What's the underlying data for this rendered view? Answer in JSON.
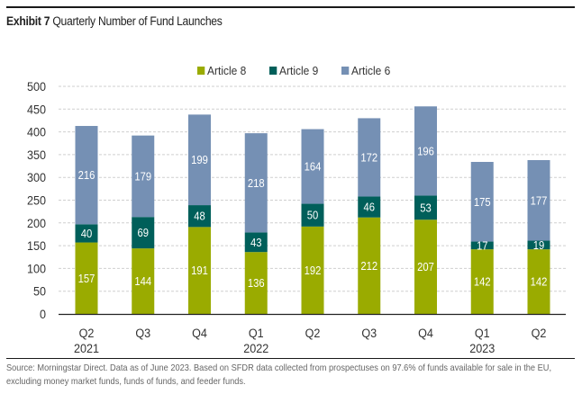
{
  "header": {
    "exhibit_label": "Exhibit 7",
    "title": "Quarterly Number of Fund Launches"
  },
  "footer": {
    "source_line1": "Source: Morningstar Direct. Data as of June 2023. Based on SFDR data collected from prospectuses on 97.6% of funds available for sale in the EU,",
    "source_line2": "excluding money market funds, funds of funds, and feeder funds."
  },
  "chart_data": {
    "type": "bar",
    "stacked": true,
    "title": "Quarterly Number of Fund Launches",
    "xlabel": "",
    "ylabel": "",
    "ylim": [
      0,
      500
    ],
    "yticks": [
      0,
      50,
      100,
      150,
      200,
      250,
      300,
      350,
      400,
      450,
      500
    ],
    "grid": true,
    "legend_position": "top-center",
    "categories": [
      "Q2 2021",
      "Q3 2021",
      "Q4 2021",
      "Q1 2022",
      "Q2 2022",
      "Q3 2022",
      "Q4 2022",
      "Q1 2023",
      "Q2 2023"
    ],
    "tick_labels": [
      {
        "quarter": "Q2",
        "year": "2021"
      },
      {
        "quarter": "Q3",
        "year": ""
      },
      {
        "quarter": "Q4",
        "year": ""
      },
      {
        "quarter": "Q1",
        "year": "2022"
      },
      {
        "quarter": "Q2",
        "year": ""
      },
      {
        "quarter": "Q3",
        "year": ""
      },
      {
        "quarter": "Q4",
        "year": ""
      },
      {
        "quarter": "Q1",
        "year": "2023"
      },
      {
        "quarter": "Q2",
        "year": ""
      }
    ],
    "series": [
      {
        "name": "Article 8",
        "color": "#9aab00",
        "values": [
          157,
          144,
          191,
          136,
          192,
          212,
          207,
          142,
          142
        ]
      },
      {
        "name": "Article 9",
        "color": "#005f5a",
        "values": [
          40,
          69,
          48,
          43,
          50,
          46,
          53,
          17,
          19
        ]
      },
      {
        "name": "Article 6",
        "color": "#7590b4",
        "values": [
          216,
          179,
          199,
          218,
          164,
          172,
          196,
          175,
          177
        ]
      }
    ]
  }
}
